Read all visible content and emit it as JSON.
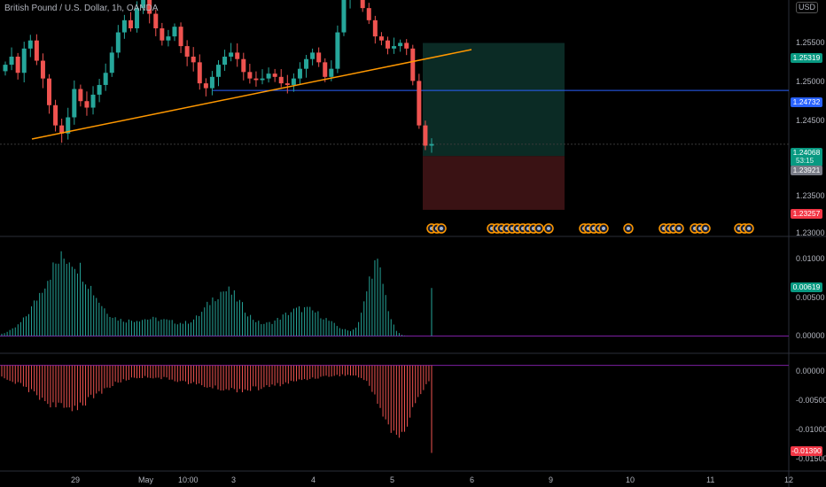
{
  "header": {
    "title": "British Pound / U.S. Dollar, 1h, OANDA",
    "currency": "USD"
  },
  "price_axis": {
    "ticks": [
      "1.25500",
      "1.25000",
      "1.24500",
      "1.23500",
      "1.23000"
    ]
  },
  "price_badges": {
    "take_profit": "1.25319",
    "horizontal_line": "1.24732",
    "last_price": "1.24068",
    "countdown": "53:15",
    "entry": "1.23921",
    "stop_loss": "1.23257"
  },
  "osc1_axis": {
    "ticks": [
      "0.01000",
      "0.00500",
      "0.00000"
    ],
    "value": "0.00619"
  },
  "osc2_axis": {
    "ticks": [
      "0.00000",
      "-0.00500",
      "-0.01000",
      "-0.01500"
    ],
    "value": "-0.01390"
  },
  "time_axis": {
    "labels": [
      "29",
      "May",
      "10:00",
      "3",
      "4",
      "5",
      "6",
      "9",
      "10",
      "11",
      "12"
    ]
  },
  "colors": {
    "background": "#000000",
    "up": "#26a69a",
    "down": "#ef5350",
    "trendline": "#ff9800",
    "hline": "#2962ff",
    "tp_zone": "#0b2b25",
    "sl_zone": "#3a1214",
    "osc1": "#26a69a",
    "osc2": "#ef5350",
    "tp_badge": "#089981",
    "sl_badge": "#f23645",
    "entry_badge": "#787b86",
    "hline_badge": "#2962ff"
  },
  "chart_data": {
    "type": "candlestick",
    "title": "British Pound / U.S. Dollar, 1h, OANDA",
    "ylim": [
      1.2295,
      1.2585
    ],
    "last_price": 1.24068,
    "horizontal_line": 1.24732,
    "position": {
      "entry": 1.23921,
      "take_profit": 1.25319,
      "stop_loss": 1.23257
    },
    "price_path": [
      1.2505,
      1.2515,
      1.2495,
      1.2525,
      1.2535,
      1.251,
      1.2488,
      1.2455,
      1.243,
      1.242,
      1.244,
      1.2475,
      1.246,
      1.2452,
      1.2468,
      1.248,
      1.2495,
      1.252,
      1.2545,
      1.256,
      1.255,
      1.2575,
      1.259,
      1.2568,
      1.255,
      1.2535,
      1.254,
      1.2552,
      1.2528,
      1.2515,
      1.2508,
      1.2482,
      1.2476,
      1.249,
      1.2505,
      1.2515,
      1.252,
      1.2512,
      1.2496,
      1.2488,
      1.2486,
      1.2488,
      1.2494,
      1.249,
      1.2482,
      1.248,
      1.2488,
      1.25,
      1.2512,
      1.252,
      1.2508,
      1.249,
      1.25,
      1.2545,
      1.2585,
      1.26,
      1.259,
      1.2575,
      1.256,
      1.254,
      1.2535,
      1.2525,
      1.2528,
      1.2532,
      1.2525,
      1.2485,
      1.243,
      1.2405,
      1.2407
    ],
    "oscillator_1": {
      "last": 0.00619,
      "ylim": [
        -0.002,
        0.0125
      ]
    },
    "oscillator_2": {
      "last": -0.0139,
      "ylim": [
        -0.0165,
        0.0015
      ]
    }
  }
}
